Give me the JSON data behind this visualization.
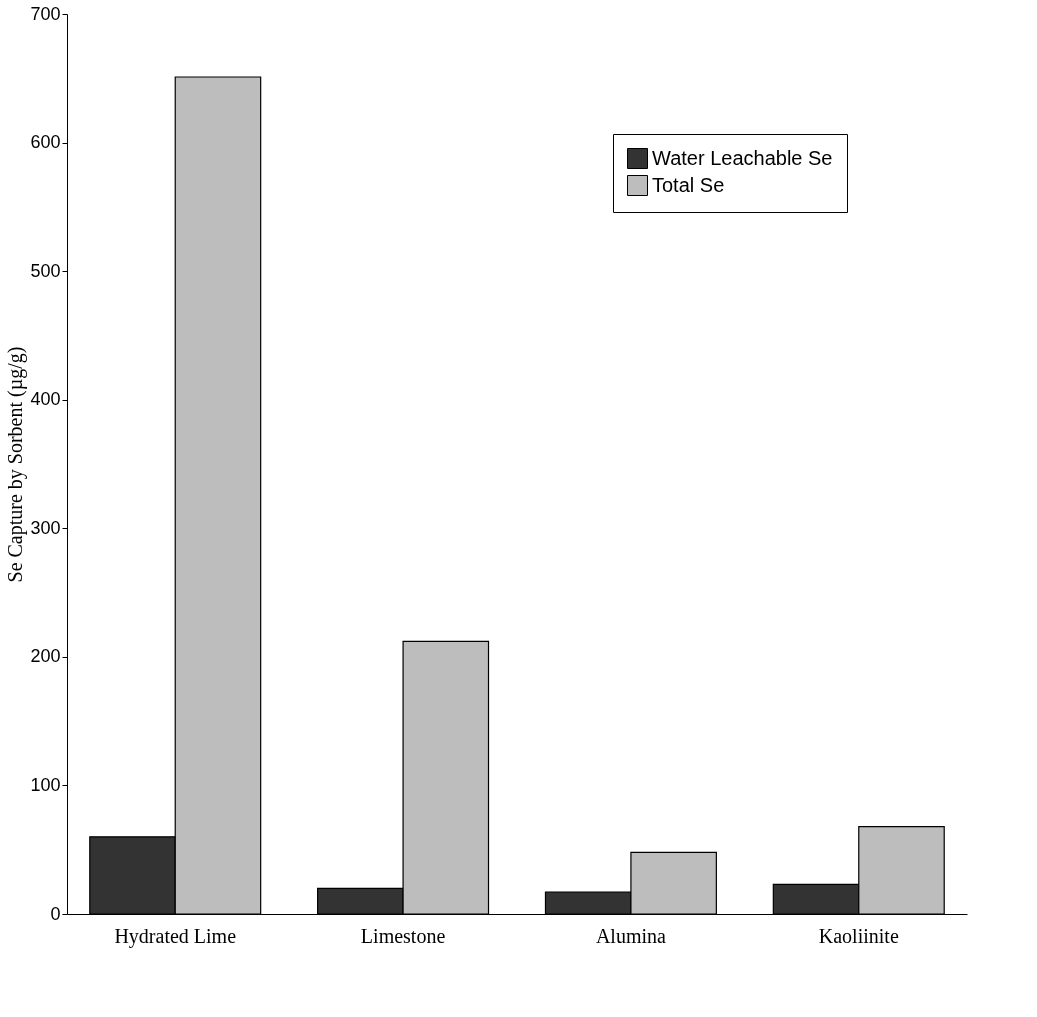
{
  "chart_data": {
    "type": "bar",
    "ylabel": "Se Capture by Sorbent (µg/g)",
    "categories": [
      "Hydrated Lime",
      "Limestone",
      "Alumina",
      "Kaoliinite"
    ],
    "series": [
      {
        "name": "Water Leachable Se",
        "color": "#333333",
        "values": [
          60,
          20,
          17,
          23
        ]
      },
      {
        "name": "Total Se",
        "color": "#bdbdbd",
        "values": [
          651,
          212,
          48,
          68
        ]
      }
    ],
    "ylim": [
      0,
      700
    ],
    "yticks": [
      0,
      100,
      200,
      300,
      400,
      500,
      600,
      700
    ],
    "grid": false,
    "legend": "top right"
  }
}
